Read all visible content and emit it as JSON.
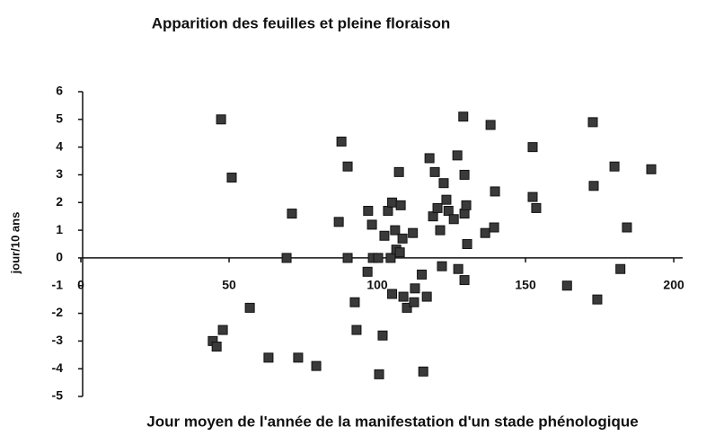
{
  "chart_data": {
    "type": "scatter",
    "title": "Apparition des feuilles et pleine floraison",
    "x_label": "Jour moyen de l'année de la manifestation d'un stade phénologique",
    "y_label": "jour/10 ans",
    "color": "#3a3a3a",
    "xlim": [
      0,
      203
    ],
    "ylim": [
      -5,
      6
    ],
    "xticks": [
      0,
      50,
      100,
      150,
      200
    ],
    "yticks": [
      -5,
      -4,
      -3,
      -2,
      -1,
      0,
      1,
      2,
      3,
      4,
      5,
      6
    ],
    "x": [
      47.3,
      50.9,
      71.2,
      69.4,
      44.5,
      45.8,
      47.9,
      57.0,
      63.3,
      73.3,
      79.4,
      87.9,
      90.0,
      87.0,
      90.0,
      92.4,
      93.0,
      96.9,
      98.2,
      96.7,
      98.5,
      100.3,
      101.8,
      100.6,
      102.4,
      103.6,
      105.0,
      106.0,
      104.5,
      105.0,
      106.4,
      107.3,
      107.9,
      108.5,
      107.6,
      108.8,
      110.0,
      112.0,
      112.7,
      112.4,
      115.0,
      116.7,
      115.5,
      117.6,
      119.4,
      118.8,
      120.3,
      121.2,
      121.8,
      122.4,
      123.3,
      124.0,
      125.8,
      127.0,
      127.3,
      129.0,
      129.4,
      129.4,
      130.0,
      129.4,
      130.3,
      136.4,
      138.2,
      139.7,
      139.4,
      152.4,
      152.4,
      153.6,
      164.0,
      172.7,
      173.0,
      174.2,
      180.0,
      182.0,
      184.2,
      192.4
    ],
    "values": [
      5.0,
      2.9,
      1.6,
      0,
      -3.0,
      -3.2,
      -2.6,
      -1.8,
      -3.6,
      -3.6,
      -3.9,
      4.2,
      3.3,
      1.3,
      0,
      -1.6,
      -2.6,
      1.7,
      1.2,
      -0.5,
      0,
      0,
      -2.8,
      -4.2,
      0.8,
      1.7,
      2.0,
      1.0,
      0,
      -1.3,
      0.3,
      3.1,
      1.9,
      0.7,
      0.2,
      -1.4,
      -1.8,
      0.9,
      -1.1,
      -1.6,
      -0.6,
      -1.4,
      -4.1,
      3.6,
      3.1,
      1.5,
      1.8,
      1.0,
      -0.3,
      2.7,
      2.1,
      1.7,
      1.4,
      3.7,
      -0.4,
      5.1,
      3.0,
      1.6,
      1.9,
      -0.8,
      0.5,
      0.9,
      4.8,
      2.4,
      1.1,
      4.0,
      2.2,
      1.8,
      -1.0,
      4.9,
      2.6,
      -1.5,
      3.3,
      -0.4,
      1.1,
      3.2
    ]
  }
}
